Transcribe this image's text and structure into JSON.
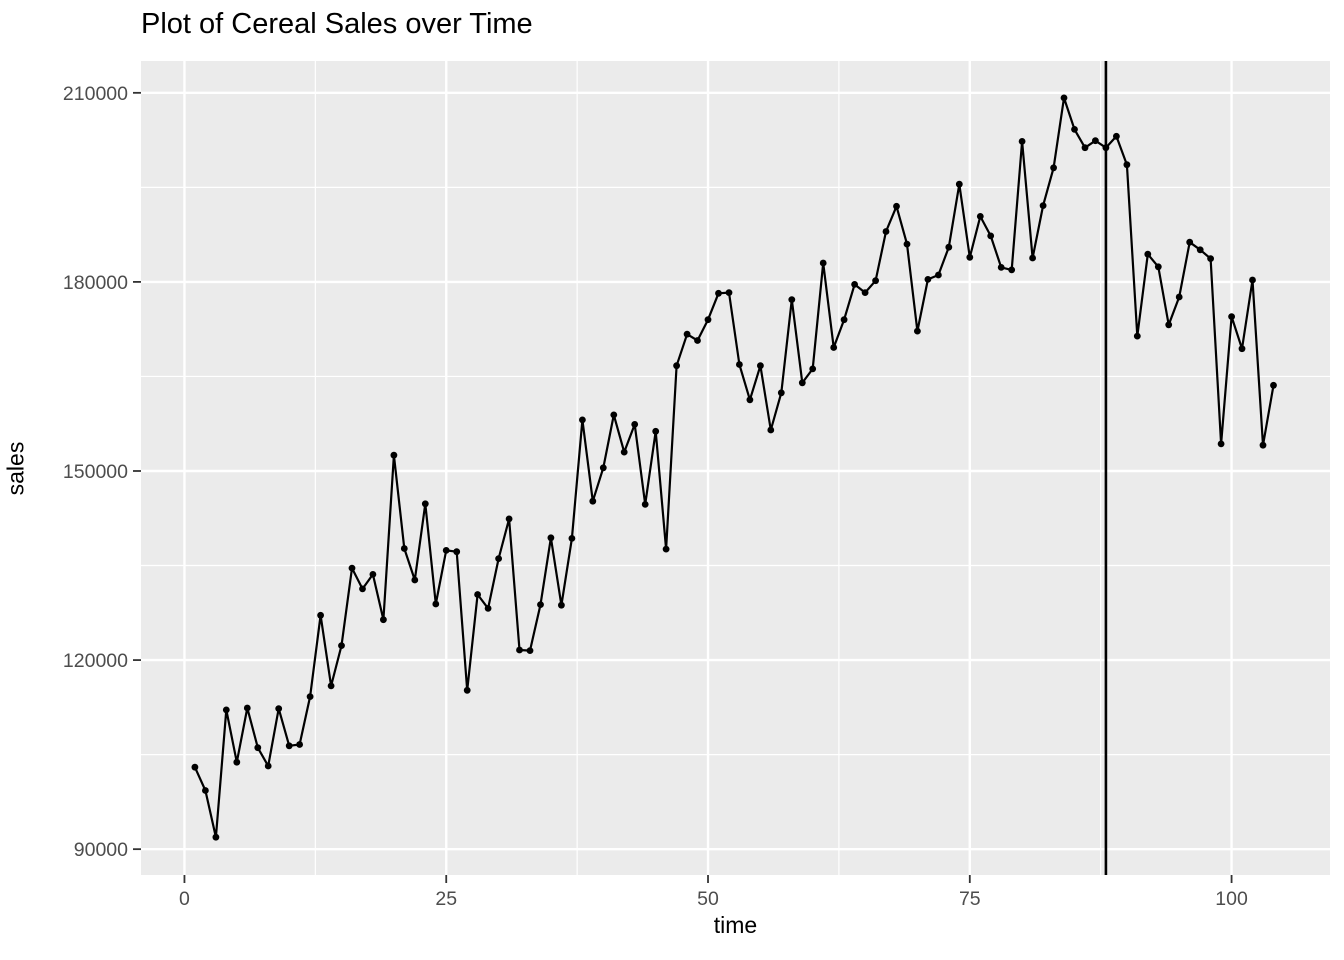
{
  "chart_data": {
    "type": "line",
    "title": "Plot of Cereal Sales over Time",
    "xlabel": "time",
    "ylabel": "sales",
    "series_name": "sales",
    "x": [
      1,
      2,
      3,
      4,
      5,
      6,
      7,
      8,
      9,
      10,
      11,
      12,
      13,
      14,
      15,
      16,
      17,
      18,
      19,
      20,
      21,
      22,
      23,
      24,
      25,
      26,
      27,
      28,
      29,
      30,
      31,
      32,
      33,
      34,
      35,
      36,
      37,
      38,
      39,
      40,
      41,
      42,
      43,
      44,
      45,
      46,
      47,
      48,
      49,
      50,
      51,
      52,
      53,
      54,
      55,
      56,
      57,
      58,
      59,
      60,
      61,
      62,
      63,
      64,
      65,
      66,
      67,
      68,
      69,
      70,
      71,
      72,
      73,
      74,
      75,
      76,
      77,
      78,
      79,
      80,
      81,
      82,
      83,
      84,
      85,
      86,
      87,
      88,
      89,
      90,
      91,
      92,
      93,
      94,
      95,
      96,
      97,
      98,
      99,
      100,
      101,
      102,
      103,
      104
    ],
    "values": [
      103000,
      99300,
      91900,
      112100,
      103800,
      112400,
      106100,
      103200,
      112300,
      106400,
      106600,
      114200,
      127100,
      115900,
      122300,
      134600,
      131300,
      133600,
      126400,
      152500,
      137700,
      132700,
      144800,
      128900,
      137400,
      137200,
      115200,
      130400,
      128200,
      136100,
      142400,
      121600,
      121500,
      128800,
      139400,
      128700,
      139300,
      158100,
      145200,
      150500,
      158900,
      153000,
      157400,
      144700,
      156300,
      137600,
      166700,
      171700,
      170700,
      174000,
      178200,
      178300,
      166900,
      161300,
      166700,
      156500,
      162400,
      177200,
      164000,
      166200,
      183000,
      169600,
      174000,
      179600,
      178300,
      180200,
      188000,
      192000,
      186000,
      172200,
      180400,
      181100,
      185500,
      195500,
      183900,
      190400,
      187300,
      182300,
      181900,
      202300,
      183800,
      192100,
      198100,
      209200,
      204200,
      201300,
      202400,
      201300,
      203100,
      198600,
      171400,
      184400,
      182400,
      173200,
      177600,
      186300,
      185100,
      183700,
      154300,
      174500,
      169400,
      180300,
      154100,
      163600
    ],
    "x_ticks": [
      0,
      25,
      50,
      75,
      100
    ],
    "y_ticks": [
      90000,
      120000,
      150000,
      180000,
      210000
    ],
    "xlim": [
      -4.15,
      109.4
    ],
    "ylim": [
      85900,
      215050
    ],
    "vline_x": 88,
    "grid": "major+minor",
    "legend": "none",
    "colors": {
      "panel_bg": "#EBEBEB",
      "grid": "#FFFFFF",
      "line": "#000000",
      "point": "#000000",
      "vline": "#000000",
      "axis_text": "#4D4D4D",
      "tick_mark": "#333333",
      "title": "#000000"
    }
  }
}
